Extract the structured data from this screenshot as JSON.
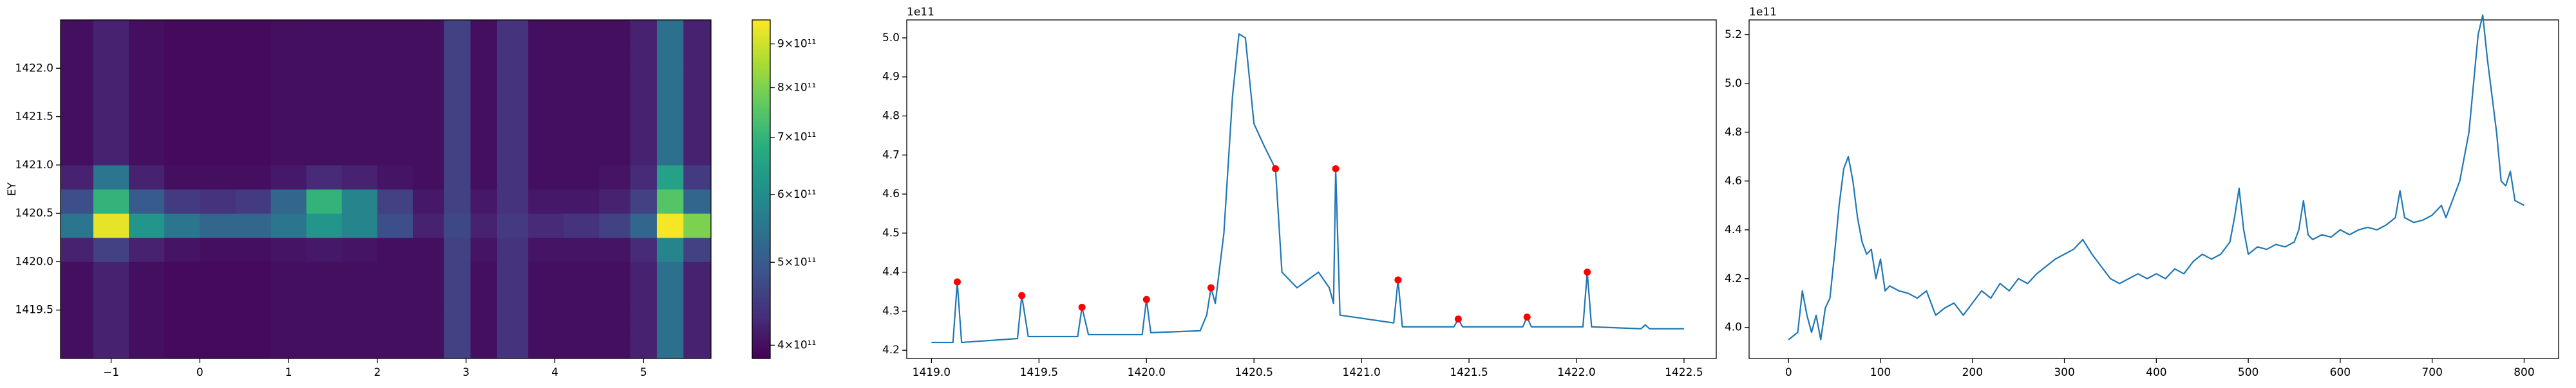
{
  "chart_data": [
    {
      "type": "heatmap",
      "ylabel": "EY",
      "x": [
        -1.4,
        -1.0,
        -0.6,
        -0.2,
        0.2,
        0.6,
        1.0,
        1.4,
        1.8,
        2.2,
        2.6,
        2.9,
        3.2,
        3.5,
        3.9,
        4.3,
        4.7,
        5.0,
        5.3,
        5.6
      ],
      "y": [
        1419.125,
        1419.375,
        1419.625,
        1419.875,
        1420.125,
        1420.375,
        1420.625,
        1420.875,
        1421.125,
        1421.375,
        1421.625,
        1421.875,
        1422.125,
        1422.375
      ],
      "z": [
        [
          400000000000.0,
          420000000000.0,
          400000000000.0,
          395000000000.0,
          395000000000.0,
          395000000000.0,
          400000000000.0,
          400000000000.0,
          400000000000.0,
          400000000000.0,
          400000000000.0,
          460000000000.0,
          400000000000.0,
          440000000000.0,
          400000000000.0,
          400000000000.0,
          400000000000.0,
          420000000000.0,
          540000000000.0,
          420000000000.0
        ],
        [
          400000000000.0,
          420000000000.0,
          400000000000.0,
          395000000000.0,
          395000000000.0,
          395000000000.0,
          400000000000.0,
          400000000000.0,
          400000000000.0,
          400000000000.0,
          400000000000.0,
          460000000000.0,
          400000000000.0,
          440000000000.0,
          400000000000.0,
          400000000000.0,
          400000000000.0,
          420000000000.0,
          540000000000.0,
          420000000000.0
        ],
        [
          400000000000.0,
          420000000000.0,
          400000000000.0,
          395000000000.0,
          395000000000.0,
          395000000000.0,
          400000000000.0,
          400000000000.0,
          400000000000.0,
          400000000000.0,
          400000000000.0,
          460000000000.0,
          400000000000.0,
          440000000000.0,
          400000000000.0,
          400000000000.0,
          400000000000.0,
          420000000000.0,
          540000000000.0,
          420000000000.0
        ],
        [
          400000000000.0,
          420000000000.0,
          400000000000.0,
          395000000000.0,
          395000000000.0,
          395000000000.0,
          400000000000.0,
          400000000000.0,
          400000000000.0,
          400000000000.0,
          400000000000.0,
          460000000000.0,
          400000000000.0,
          440000000000.0,
          400000000000.0,
          400000000000.0,
          400000000000.0,
          420000000000.0,
          540000000000.0,
          420000000000.0
        ],
        [
          420000000000.0,
          460000000000.0,
          420000000000.0,
          405000000000.0,
          400000000000.0,
          400000000000.0,
          405000000000.0,
          410000000000.0,
          405000000000.0,
          400000000000.0,
          400000000000.0,
          460000000000.0,
          405000000000.0,
          440000000000.0,
          405000000000.0,
          405000000000.0,
          405000000000.0,
          430000000000.0,
          580000000000.0,
          460000000000.0
        ],
        [
          550000000000.0,
          930000000000.0,
          620000000000.0,
          550000000000.0,
          520000000000.0,
          520000000000.0,
          550000000000.0,
          620000000000.0,
          580000000000.0,
          480000000000.0,
          420000000000.0,
          470000000000.0,
          420000000000.0,
          450000000000.0,
          430000000000.0,
          440000000000.0,
          460000000000.0,
          520000000000.0,
          950000000000.0,
          800000000000.0
        ],
        [
          480000000000.0,
          700000000000.0,
          500000000000.0,
          450000000000.0,
          440000000000.0,
          450000000000.0,
          520000000000.0,
          700000000000.0,
          580000000000.0,
          460000000000.0,
          410000000000.0,
          460000000000.0,
          410000000000.0,
          440000000000.0,
          410000000000.0,
          410000000000.0,
          420000000000.0,
          460000000000.0,
          750000000000.0,
          520000000000.0
        ],
        [
          420000000000.0,
          550000000000.0,
          420000000000.0,
          400000000000.0,
          400000000000.0,
          400000000000.0,
          410000000000.0,
          430000000000.0,
          420000000000.0,
          405000000000.0,
          400000000000.0,
          460000000000.0,
          400000000000.0,
          440000000000.0,
          400000000000.0,
          400000000000.0,
          405000000000.0,
          430000000000.0,
          650000000000.0,
          450000000000.0
        ],
        [
          400000000000.0,
          420000000000.0,
          400000000000.0,
          395000000000.0,
          395000000000.0,
          395000000000.0,
          400000000000.0,
          400000000000.0,
          400000000000.0,
          400000000000.0,
          400000000000.0,
          460000000000.0,
          400000000000.0,
          440000000000.0,
          400000000000.0,
          400000000000.0,
          400000000000.0,
          420000000000.0,
          540000000000.0,
          420000000000.0
        ],
        [
          400000000000.0,
          420000000000.0,
          400000000000.0,
          395000000000.0,
          395000000000.0,
          395000000000.0,
          400000000000.0,
          400000000000.0,
          400000000000.0,
          400000000000.0,
          400000000000.0,
          460000000000.0,
          400000000000.0,
          440000000000.0,
          400000000000.0,
          400000000000.0,
          400000000000.0,
          420000000000.0,
          540000000000.0,
          420000000000.0
        ],
        [
          400000000000.0,
          420000000000.0,
          400000000000.0,
          395000000000.0,
          395000000000.0,
          395000000000.0,
          400000000000.0,
          400000000000.0,
          400000000000.0,
          400000000000.0,
          400000000000.0,
          460000000000.0,
          400000000000.0,
          440000000000.0,
          400000000000.0,
          400000000000.0,
          400000000000.0,
          420000000000.0,
          540000000000.0,
          420000000000.0
        ],
        [
          400000000000.0,
          420000000000.0,
          400000000000.0,
          395000000000.0,
          395000000000.0,
          395000000000.0,
          400000000000.0,
          400000000000.0,
          400000000000.0,
          400000000000.0,
          400000000000.0,
          460000000000.0,
          400000000000.0,
          440000000000.0,
          400000000000.0,
          400000000000.0,
          400000000000.0,
          420000000000.0,
          540000000000.0,
          420000000000.0
        ],
        [
          400000000000.0,
          420000000000.0,
          400000000000.0,
          395000000000.0,
          395000000000.0,
          395000000000.0,
          400000000000.0,
          400000000000.0,
          400000000000.0,
          400000000000.0,
          400000000000.0,
          460000000000.0,
          400000000000.0,
          440000000000.0,
          400000000000.0,
          400000000000.0,
          400000000000.0,
          420000000000.0,
          540000000000.0,
          420000000000.0
        ],
        [
          400000000000.0,
          420000000000.0,
          400000000000.0,
          395000000000.0,
          395000000000.0,
          395000000000.0,
          400000000000.0,
          400000000000.0,
          400000000000.0,
          400000000000.0,
          400000000000.0,
          460000000000.0,
          400000000000.0,
          440000000000.0,
          400000000000.0,
          400000000000.0,
          400000000000.0,
          420000000000.0,
          540000000000.0,
          420000000000.0
        ]
      ],
      "xlim": [
        -1.57,
        5.76
      ],
      "ylim": [
        1419.0,
        1422.5
      ],
      "xticks": [
        {
          "value": -1,
          "label": "−1"
        },
        0,
        1,
        2,
        3,
        4,
        5
      ],
      "yticks": [
        1419.5,
        {
          "value": 1420,
          "label": "1420.0"
        },
        1420.5,
        {
          "value": 1421,
          "label": "1421.0"
        },
        1421.5,
        {
          "value": 1422,
          "label": "1422.0"
        }
      ],
      "colormap": "viridis",
      "color_scale": "log",
      "clim": [
        386000000000.0,
        960000000000.0
      ],
      "cticks": [
        {
          "value": 400000000000.0,
          "label": "4×10¹¹"
        },
        {
          "value": 500000000000.0,
          "label": "5×10¹¹"
        },
        {
          "value": 600000000000.0,
          "label": "6×10¹¹"
        },
        {
          "value": 700000000000.0,
          "label": "7×10¹¹"
        },
        {
          "value": 800000000000.0,
          "label": "8×10¹¹"
        },
        {
          "value": 900000000000.0,
          "label": "9×10¹¹"
        }
      ]
    },
    {
      "type": "line",
      "offset_label": "1e11",
      "color": "#1f77b4",
      "x": [
        1419.0,
        1419.1,
        1419.12,
        1419.14,
        1419.4,
        1419.42,
        1419.45,
        1419.68,
        1419.7,
        1419.73,
        1419.98,
        1420.0,
        1420.02,
        1420.25,
        1420.28,
        1420.3,
        1420.32,
        1420.36,
        1420.4,
        1420.43,
        1420.46,
        1420.5,
        1420.55,
        1420.6,
        1420.63,
        1420.7,
        1420.8,
        1420.85,
        1420.87,
        1420.88,
        1420.9,
        1421.15,
        1421.17,
        1421.19,
        1421.43,
        1421.45,
        1421.47,
        1421.75,
        1421.77,
        1421.79,
        1422.03,
        1422.05,
        1422.07,
        1422.3,
        1422.32,
        1422.34,
        1422.5
      ],
      "values": [
        4.22,
        4.22,
        4.375,
        4.22,
        4.23,
        4.34,
        4.235,
        4.235,
        4.31,
        4.24,
        4.24,
        4.33,
        4.245,
        4.25,
        4.29,
        4.36,
        4.32,
        4.5,
        4.85,
        5.01,
        5.0,
        4.78,
        4.72,
        4.665,
        4.4,
        4.36,
        4.4,
        4.36,
        4.32,
        4.665,
        4.29,
        4.27,
        4.38,
        4.26,
        4.26,
        4.28,
        4.26,
        4.26,
        4.285,
        4.26,
        4.26,
        4.4,
        4.26,
        4.255,
        4.265,
        4.255,
        4.255
      ],
      "peaks": {
        "color": "red",
        "x": [
          1419.12,
          1419.42,
          1419.7,
          1420.0,
          1420.3,
          1420.6,
          1420.88,
          1421.17,
          1421.45,
          1421.77,
          1422.05
        ],
        "values": [
          4.375,
          4.34,
          4.31,
          4.33,
          4.36,
          4.665,
          4.665,
          4.38,
          4.28,
          4.285,
          4.4
        ]
      },
      "xlim": [
        1418.885,
        1422.65
      ],
      "ylim": [
        4.179,
        5.046
      ],
      "xticks": [
        {
          "value": 1419,
          "label": "1419.0"
        },
        1419.5,
        {
          "value": 1420,
          "label": "1420.0"
        },
        1420.5,
        {
          "value": 1421,
          "label": "1421.0"
        },
        1421.5,
        {
          "value": 1422,
          "label": "1422.0"
        },
        1422.5
      ],
      "yticks": [
        4.2,
        4.3,
        4.4,
        4.5,
        4.6,
        4.7,
        4.8,
        4.9,
        {
          "value": 5,
          "label": "5.0"
        }
      ]
    },
    {
      "type": "line",
      "offset_label": "1e11",
      "color": "#1f77b4",
      "x": [
        0,
        10,
        15,
        20,
        25,
        30,
        35,
        40,
        45,
        50,
        55,
        60,
        65,
        70,
        75,
        80,
        85,
        90,
        95,
        100,
        105,
        110,
        120,
        130,
        140,
        150,
        160,
        170,
        180,
        190,
        200,
        210,
        220,
        230,
        240,
        250,
        260,
        270,
        280,
        290,
        300,
        310,
        320,
        330,
        340,
        350,
        360,
        370,
        380,
        390,
        400,
        410,
        420,
        430,
        440,
        450,
        460,
        470,
        480,
        485,
        490,
        495,
        500,
        510,
        520,
        530,
        540,
        550,
        555,
        560,
        565,
        570,
        580,
        590,
        600,
        610,
        620,
        630,
        640,
        650,
        660,
        665,
        670,
        680,
        690,
        700,
        710,
        715,
        720,
        730,
        740,
        750,
        755,
        760,
        770,
        775,
        780,
        785,
        790,
        800
      ],
      "values": [
        3.95,
        3.98,
        4.15,
        4.05,
        3.98,
        4.05,
        3.95,
        4.08,
        4.12,
        4.3,
        4.5,
        4.65,
        4.7,
        4.6,
        4.45,
        4.35,
        4.3,
        4.32,
        4.2,
        4.28,
        4.15,
        4.17,
        4.15,
        4.14,
        4.12,
        4.15,
        4.05,
        4.08,
        4.1,
        4.05,
        4.1,
        4.15,
        4.12,
        4.18,
        4.15,
        4.2,
        4.18,
        4.22,
        4.25,
        4.28,
        4.3,
        4.32,
        4.36,
        4.3,
        4.25,
        4.2,
        4.18,
        4.2,
        4.22,
        4.2,
        4.22,
        4.2,
        4.24,
        4.22,
        4.27,
        4.3,
        4.28,
        4.3,
        4.35,
        4.45,
        4.57,
        4.4,
        4.3,
        4.33,
        4.32,
        4.34,
        4.33,
        4.35,
        4.4,
        4.52,
        4.38,
        4.36,
        4.38,
        4.37,
        4.4,
        4.38,
        4.4,
        4.41,
        4.4,
        4.42,
        4.45,
        4.56,
        4.45,
        4.43,
        4.44,
        4.46,
        4.5,
        4.45,
        4.5,
        4.6,
        4.8,
        5.2,
        5.28,
        5.1,
        4.8,
        4.6,
        4.58,
        4.64,
        4.52,
        4.5
      ],
      "xlim": [
        -42.9,
        837.5
      ],
      "ylim": [
        3.873,
        5.26
      ],
      "xticks": [
        0,
        100,
        200,
        300,
        400,
        500,
        600,
        700,
        800
      ],
      "yticks": [
        {
          "value": 4,
          "label": "4.0"
        },
        4.2,
        4.4,
        4.6,
        4.8,
        {
          "value": 5,
          "label": "5.0"
        },
        5.2
      ]
    }
  ]
}
